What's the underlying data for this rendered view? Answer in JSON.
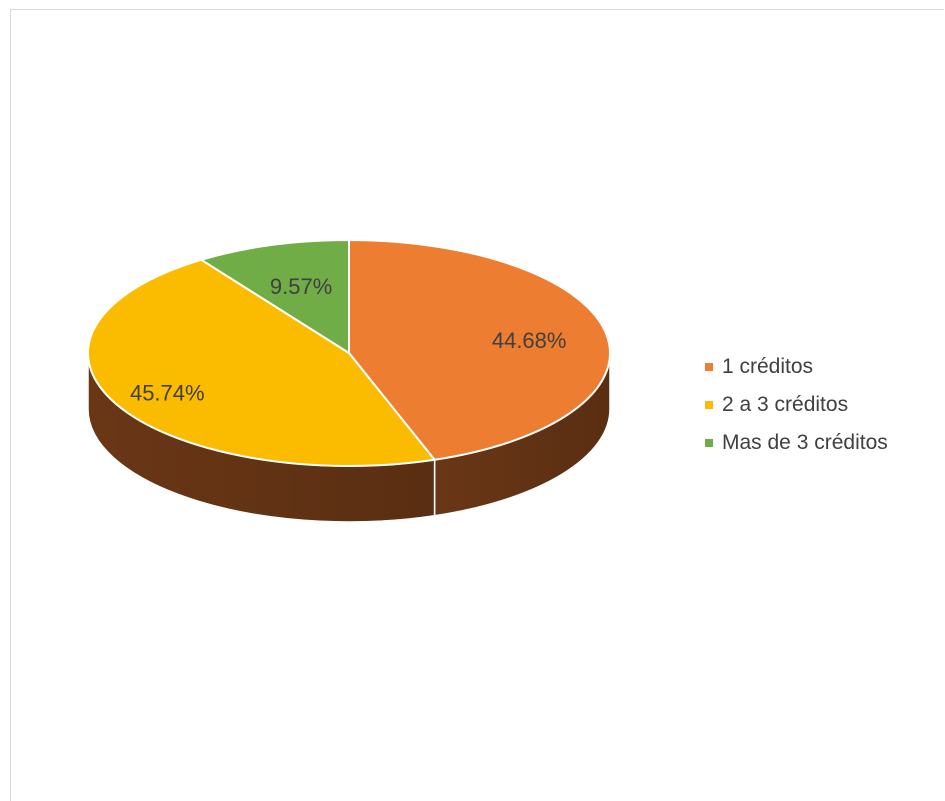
{
  "chart_data": {
    "type": "pie",
    "style": "3d",
    "title": "",
    "slices": [
      {
        "label": "1 créditos",
        "value": 44.68,
        "value_label": "44.68%",
        "color": "#ED7D31",
        "side_color": "#5E3014"
      },
      {
        "label": "2 a 3 créditos",
        "value": 45.74,
        "value_label": "45.74%",
        "color": "#FBBC00",
        "side_color": "#8C6A00"
      },
      {
        "label": "Mas de 3 créditos",
        "value": 9.57,
        "value_label": "9.57%",
        "color": "#70AD47",
        "side_color": "#3E5F27"
      }
    ],
    "legend_position": "right"
  }
}
